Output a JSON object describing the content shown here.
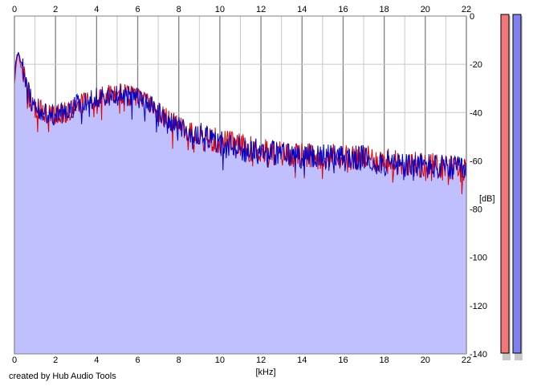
{
  "credit": "created by Hub Audio Tools",
  "colors": {
    "background": "#ffffff",
    "fill": "#c0c0ff",
    "left_channel": "#e00000",
    "right_channel": "#0000c8",
    "grid_major": "#808080",
    "grid_minor": "#c8c8c8",
    "meter_left": "#f07878",
    "meter_right": "#8080f0"
  },
  "meters": [
    {
      "name": "left",
      "color": "#f07878"
    },
    {
      "name": "right",
      "color": "#8080f0"
    }
  ],
  "chart_data": {
    "type": "area",
    "xlabel": "[kHz]",
    "ylabel": "[dB]",
    "xlim": [
      0,
      22
    ],
    "ylim": [
      -140,
      0
    ],
    "x_ticks": [
      "0",
      "2",
      "4",
      "6",
      "8",
      "10",
      "12",
      "14",
      "16",
      "18",
      "20",
      "22"
    ],
    "y_ticks": [
      "0",
      "-20",
      "-40",
      "-60",
      "-80",
      "-100",
      "-120",
      "-140"
    ],
    "grid": true,
    "x_top_axis": true,
    "series": [
      {
        "color": "#e00000",
        "x": [
          0,
          0.1,
          0.2,
          0.3,
          0.5,
          0.7,
          1,
          1.5,
          2,
          2.5,
          3,
          3.5,
          4,
          4.5,
          5,
          5.5,
          6,
          6.5,
          7,
          7.5,
          8,
          8.5,
          9,
          9.5,
          10,
          11,
          12,
          13,
          14,
          15,
          16,
          17,
          18,
          19,
          20,
          21,
          22
        ],
        "y": [
          -28,
          -18,
          -16,
          -20,
          -26,
          -33,
          -38,
          -40,
          -41,
          -40,
          -37,
          -35,
          -34,
          -33,
          -32,
          -33,
          -34,
          -36,
          -40,
          -43,
          -45,
          -48,
          -49,
          -51,
          -52,
          -54,
          -56,
          -57,
          -58,
          -58,
          -58,
          -59,
          -60,
          -61,
          -62,
          -62,
          -64
        ]
      },
      {
        "color": "#0000c8",
        "x": [
          0,
          0.1,
          0.2,
          0.3,
          0.5,
          0.7,
          1,
          1.5,
          2,
          2.5,
          3,
          3.5,
          4,
          4.5,
          5,
          5.5,
          6,
          6.5,
          7,
          7.5,
          8,
          8.5,
          9,
          9.5,
          10,
          11,
          12,
          13,
          14,
          15,
          16,
          17,
          18,
          19,
          20,
          21,
          22
        ],
        "y": [
          -25,
          -17,
          -14,
          -18,
          -24,
          -32,
          -38,
          -40,
          -41,
          -40,
          -37,
          -35,
          -34,
          -33,
          -32,
          -33,
          -34,
          -36,
          -40,
          -43,
          -45,
          -48,
          -49,
          -51,
          -53,
          -55,
          -56,
          -57,
          -58,
          -58,
          -59,
          -59,
          -61,
          -62,
          -62,
          -63,
          -64
        ]
      }
    ]
  }
}
